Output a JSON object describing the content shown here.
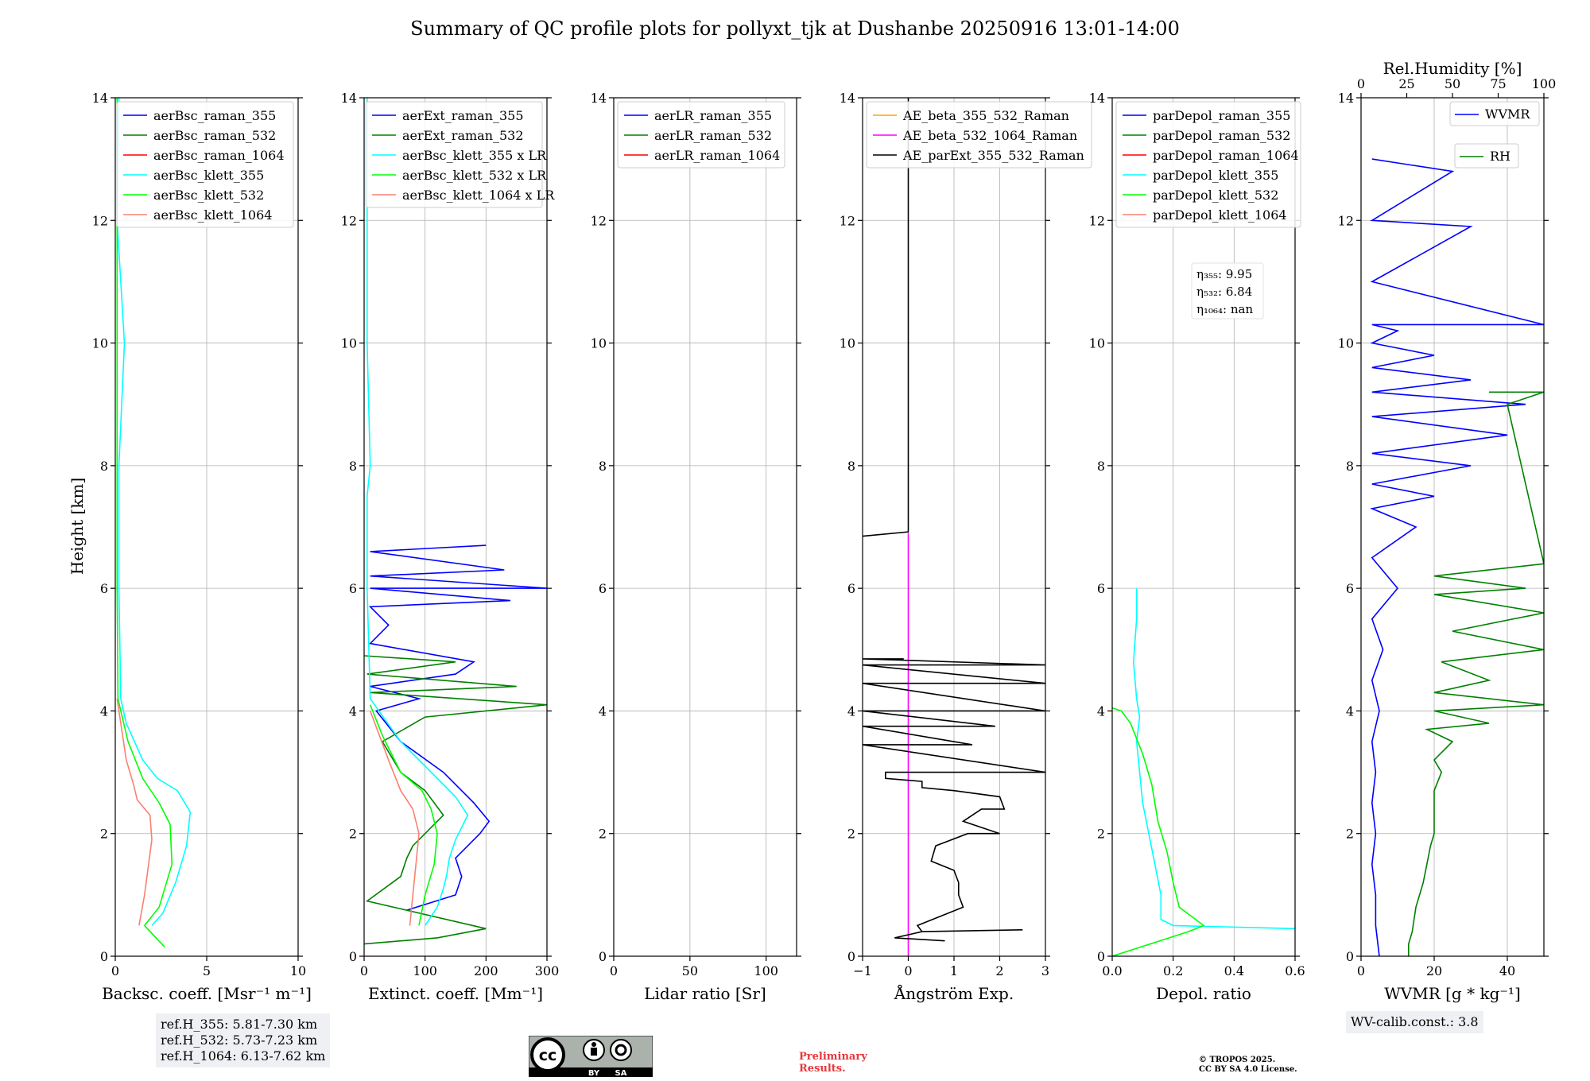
{
  "title": "Summary of QC profile plots for pollyxt_tjk at Dushanbe 20250916 13:01-14:00",
  "ylabel": "Height [km]",
  "yticks": [
    "0",
    "2",
    "4",
    "6",
    "8",
    "10",
    "12",
    "14"
  ],
  "colors": {
    "blue": "#0000ff",
    "green": "#008000",
    "red": "#ff0000",
    "cyan": "#00ffff",
    "lime": "#00ff00",
    "salmon": "#fa8072",
    "orange": "#ffa500",
    "magenta": "#ff00ff",
    "black": "#000000"
  },
  "ref_heights": [
    "ref.H_355: 5.81-7.30 km",
    "ref.H_532: 5.73-7.23 km",
    "ref.H_1064: 6.13-7.62 km"
  ],
  "wv_calib": "WV-calib.const.: 3.8",
  "preliminary": [
    "Preliminary",
    "Results."
  ],
  "license": [
    "© TROPOS 2025.",
    "CC BY SA 4.0 License."
  ],
  "cc_badge": {
    "by": "BY",
    "sa": "SA"
  },
  "chart_data": [
    {
      "type": "line",
      "xlabel": "Backsc. coeff. [Msr⁻¹ m⁻¹]",
      "xlim": [
        0,
        10
      ],
      "ylim": [
        0,
        14
      ],
      "xticks": [
        "0",
        "5",
        "10"
      ],
      "legend": "top-right",
      "series": [
        {
          "name": "aerBsc_raman_355",
          "color": "blue",
          "x": [],
          "y": []
        },
        {
          "name": "aerBsc_raman_532",
          "color": "green",
          "x": [],
          "y": []
        },
        {
          "name": "aerBsc_raman_1064",
          "color": "red",
          "x": [],
          "y": []
        },
        {
          "name": "aerBsc_klett_355",
          "color": "cyan",
          "x": [
            2.0,
            2.6,
            3.3,
            3.9,
            4.1,
            3.4,
            2.3,
            1.5,
            0.6,
            0.3,
            0.2,
            0.2,
            0.5,
            0.1,
            0.2
          ],
          "y": [
            0.5,
            0.7,
            1.2,
            1.8,
            2.35,
            2.7,
            2.9,
            3.2,
            3.8,
            4.2,
            6.0,
            8.0,
            10.0,
            12.0,
            14.0
          ]
        },
        {
          "name": "aerBsc_klett_532",
          "color": "lime",
          "x": [
            2.7,
            1.6,
            2.4,
            3.1,
            3.0,
            2.4,
            1.5,
            0.7,
            0.3,
            0.15,
            0.1,
            0.1,
            0.1,
            0.1
          ],
          "y": [
            0.15,
            0.5,
            0.8,
            1.5,
            2.15,
            2.5,
            2.9,
            3.5,
            4.0,
            4.2,
            6.0,
            8.0,
            10.0,
            14.0
          ]
        },
        {
          "name": "aerBsc_klett_1064",
          "color": "salmon",
          "x": [
            1.3,
            1.6,
            2.0,
            1.9,
            1.2,
            1.0,
            0.6,
            0.4,
            0.2,
            0.1
          ],
          "y": [
            0.5,
            1.0,
            1.9,
            2.3,
            2.55,
            2.8,
            3.2,
            3.6,
            4.0,
            4.2
          ]
        }
      ]
    },
    {
      "type": "line",
      "xlabel": "Extinct. coeff. [Mm⁻¹]",
      "xlim": [
        0,
        300
      ],
      "ylim": [
        0,
        14
      ],
      "xticks": [
        "0",
        "100",
        "200",
        "300"
      ],
      "legend": "top-right",
      "series": [
        {
          "name": "aerExt_raman_355",
          "color": "blue",
          "x": [
            70,
            150,
            160,
            150,
            180,
            190,
            205,
            180,
            130,
            60,
            20,
            90,
            10,
            150,
            180,
            10,
            40,
            10,
            240,
            10,
            300,
            10,
            230,
            10,
            200
          ],
          "y": [
            0.75,
            1.0,
            1.3,
            1.6,
            1.9,
            2.0,
            2.2,
            2.5,
            3.0,
            3.5,
            4.0,
            4.2,
            4.4,
            4.6,
            4.8,
            5.1,
            5.4,
            5.7,
            5.8,
            6.0,
            6.0,
            6.2,
            6.3,
            6.6,
            6.7
          ]
        },
        {
          "name": "aerExt_raman_532",
          "color": "green",
          "x": [
            0,
            120,
            200,
            5,
            60,
            70,
            80,
            100,
            130,
            100,
            60,
            30,
            100,
            300,
            10,
            250,
            5,
            150,
            0
          ],
          "y": [
            0.2,
            0.3,
            0.45,
            0.9,
            1.3,
            1.6,
            1.8,
            2.0,
            2.3,
            2.7,
            3.0,
            3.5,
            3.9,
            4.1,
            4.3,
            4.4,
            4.6,
            4.8,
            4.9
          ]
        },
        {
          "name": "aerBsc_klett_355 x LR",
          "color": "cyan",
          "x": [
            100,
            120,
            130,
            135,
            140,
            150,
            170,
            150,
            130,
            60,
            10,
            5,
            5,
            10,
            5,
            5
          ],
          "y": [
            0.5,
            0.8,
            1.1,
            1.3,
            1.6,
            1.9,
            2.3,
            2.6,
            2.8,
            3.5,
            4.2,
            6.0,
            7.5,
            8.0,
            10.0,
            14.0
          ]
        },
        {
          "name": "aerBsc_klett_532 x LR",
          "color": "lime",
          "x": [
            90,
            100,
            115,
            120,
            110,
            95,
            60,
            30,
            10
          ],
          "y": [
            0.5,
            1.0,
            1.5,
            2.0,
            2.4,
            2.7,
            3.0,
            3.6,
            4.1
          ]
        },
        {
          "name": "aerBsc_klett_1064 x LR",
          "color": "salmon",
          "x": [
            75,
            80,
            85,
            90,
            80,
            60,
            40,
            10
          ],
          "y": [
            0.5,
            1.0,
            1.5,
            2.0,
            2.4,
            2.7,
            3.2,
            4.0
          ]
        }
      ]
    },
    {
      "type": "line",
      "xlabel": "Lidar ratio [Sr]",
      "xlim": [
        0,
        120
      ],
      "ylim": [
        0,
        14
      ],
      "xticks": [
        "0",
        "50",
        "100"
      ],
      "legend": "top-left",
      "series": [
        {
          "name": "aerLR_raman_355",
          "color": "blue",
          "x": [],
          "y": []
        },
        {
          "name": "aerLR_raman_532",
          "color": "green",
          "x": [],
          "y": []
        },
        {
          "name": "aerLR_raman_1064",
          "color": "red",
          "x": [],
          "y": []
        }
      ]
    },
    {
      "type": "line",
      "xlabel": "Ångström Exp.",
      "xlim": [
        -1,
        3
      ],
      "ylim": [
        0,
        14
      ],
      "xticks": [
        "−1",
        "0",
        "1",
        "2",
        "3"
      ],
      "legend": "top-left",
      "series": [
        {
          "name": "AE_beta_355_532_Raman",
          "color": "orange",
          "x": [],
          "y": []
        },
        {
          "name": "AE_beta_532_1064_Raman",
          "color": "magenta",
          "x": [
            0,
            0
          ],
          "y": [
            0,
            6.9
          ]
        },
        {
          "name": "AE_parExt_355_532_Raman",
          "color": "black",
          "x": [
            0.8,
            -0.3,
            0.3,
            2.5,
            0.3,
            0.2,
            1.2,
            1.1,
            1.1,
            1.0,
            0.5,
            0.6,
            1.3,
            2.0,
            1.2,
            1.6,
            2.1,
            2.0,
            1.0,
            0.3,
            0.3,
            -0.5,
            -0.5,
            3.0,
            -1.0,
            1.4,
            -1.0,
            1.9,
            -1.0,
            3.0,
            -1.0,
            3.0,
            -1.0,
            3.0,
            -1.0,
            -0.1
          ],
          "y": [
            0.25,
            0.3,
            0.4,
            0.43,
            0.4,
            0.5,
            0.8,
            1.0,
            1.2,
            1.4,
            1.55,
            1.8,
            2.0,
            2.0,
            2.2,
            2.4,
            2.4,
            2.6,
            2.7,
            2.75,
            2.85,
            2.9,
            3.0,
            3.0,
            3.45,
            3.45,
            3.75,
            3.75,
            4.0,
            4.0,
            4.45,
            4.45,
            4.75,
            4.75,
            4.85,
            4.85
          ]
        },
        {
          "name": "AE_parExt_355_532_Raman (upper)",
          "color": "black",
          "x": [
            -1,
            0,
            0
          ],
          "y": [
            6.85,
            6.92,
            14
          ]
        }
      ]
    },
    {
      "type": "line",
      "xlabel": "Depol. ratio",
      "xlim": [
        0,
        0.6
      ],
      "ylim": [
        0,
        14
      ],
      "xticks": [
        "0.0",
        "0.2",
        "0.4",
        "0.6"
      ],
      "legend": "top-left",
      "annotations": [
        "η₃₅₅: 9.95",
        "η₅₃₂: 6.84",
        "η₁₀₆₄: nan"
      ],
      "series": [
        {
          "name": "parDepol_raman_355",
          "color": "blue",
          "x": [],
          "y": []
        },
        {
          "name": "parDepol_raman_532",
          "color": "green",
          "x": [],
          "y": []
        },
        {
          "name": "parDepol_raman_1064",
          "color": "red",
          "x": [],
          "y": []
        },
        {
          "name": "parDepol_klett_355",
          "color": "cyan",
          "x": [
            0.6,
            0.2,
            0.16,
            0.16,
            0.14,
            0.12,
            0.1,
            0.09,
            0.08,
            0.09,
            0.08,
            0.07,
            0.08,
            0.08
          ],
          "y": [
            0.45,
            0.5,
            0.6,
            1.0,
            1.5,
            2.0,
            2.5,
            3.0,
            3.5,
            3.9,
            4.2,
            4.8,
            5.5,
            6.0
          ]
        },
        {
          "name": "parDepol_klett_532",
          "color": "lime",
          "x": [
            0.0,
            0.25,
            0.3,
            0.22,
            0.2,
            0.18,
            0.15,
            0.13,
            0.1,
            0.06,
            0.03,
            0.0
          ],
          "y": [
            0.0,
            0.4,
            0.5,
            0.8,
            1.2,
            1.7,
            2.2,
            2.8,
            3.3,
            3.8,
            4.0,
            4.05
          ]
        },
        {
          "name": "parDepol_klett_1064",
          "color": "salmon",
          "x": [],
          "y": []
        }
      ]
    },
    {
      "type": "line",
      "xlabel": "WVMR [g * kg⁻¹]",
      "xlim": [
        0,
        50
      ],
      "ylim": [
        0,
        14
      ],
      "xticks": [
        "0",
        "20",
        "40"
      ],
      "top_xlabel": "Rel.Humidity [%]",
      "top_xlim": [
        0,
        100
      ],
      "top_xticks": [
        "0",
        "25",
        "50",
        "75",
        "100"
      ],
      "legend": "top-right",
      "series": [
        {
          "name": "WVMR",
          "color": "blue",
          "x": [
            5,
            4,
            4,
            3,
            4,
            3,
            4,
            3,
            5,
            3,
            6,
            3,
            10,
            3,
            15,
            3,
            20,
            3,
            30,
            3,
            40,
            3,
            45,
            3,
            30,
            3,
            20,
            3,
            10,
            3,
            50,
            3,
            30,
            3,
            25,
            3
          ],
          "y": [
            0,
            0.5,
            1.0,
            1.5,
            2.0,
            2.5,
            3.0,
            3.5,
            4.0,
            4.5,
            5.0,
            5.5,
            6.0,
            6.5,
            7.0,
            7.3,
            7.5,
            7.7,
            8.0,
            8.2,
            8.5,
            8.8,
            9.0,
            9.2,
            9.4,
            9.6,
            9.8,
            10.0,
            10.2,
            10.3,
            10.3,
            11.0,
            11.9,
            12.0,
            12.8,
            13.0
          ]
        },
        {
          "name": "RH",
          "color": "green",
          "x": [
            13,
            13,
            14,
            15,
            17,
            18,
            19,
            20,
            20,
            20,
            22,
            20,
            25,
            18,
            35,
            20,
            50,
            20,
            35,
            22,
            50,
            25,
            50,
            20,
            45,
            20,
            50,
            40,
            50,
            35,
            50
          ],
          "y": [
            0,
            0.2,
            0.4,
            0.8,
            1.2,
            1.5,
            1.8,
            2.0,
            2.4,
            2.7,
            3.0,
            3.2,
            3.5,
            3.7,
            3.8,
            4.0,
            4.1,
            4.3,
            4.5,
            4.8,
            5.0,
            5.3,
            5.6,
            5.9,
            6.0,
            6.2,
            6.4,
            9.0,
            9.2,
            9.2,
            9.2
          ]
        }
      ]
    }
  ]
}
